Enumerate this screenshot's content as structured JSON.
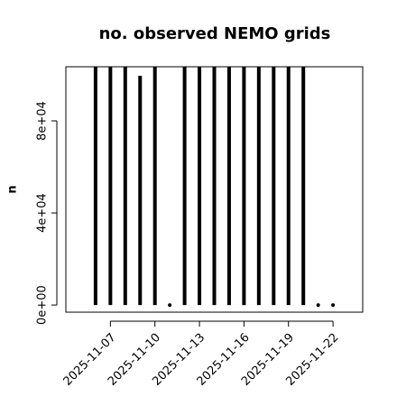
{
  "chart_data": {
    "type": "spike",
    "title": "no. observed NEMO grids",
    "y_label": "n",
    "x": [
      "2025-11-06",
      "2025-11-07",
      "2025-11-08",
      "2025-11-09",
      "2025-11-10",
      "2025-11-11",
      "2025-11-12",
      "2025-11-13",
      "2025-11-14",
      "2025-11-15",
      "2025-11-16",
      "2025-11-17",
      "2025-11-18",
      "2025-11-19",
      "2025-11-20",
      "2025-11-21",
      "2025-11-22"
    ],
    "values": [
      103500,
      103500,
      103500,
      99600,
      103500,
      0,
      103500,
      103500,
      103500,
      103500,
      103500,
      103500,
      103500,
      103500,
      103500,
      0,
      0
    ],
    "color": "#000000",
    "xlim": [
      "2025-11-04",
      "2025-11-24"
    ],
    "xticks": [
      "2025-11-07",
      "2025-11-10",
      "2025-11-13",
      "2025-11-16",
      "2025-11-19",
      "2025-11-22"
    ],
    "ylim": [
      -3100,
      103500
    ],
    "yticks": [
      {
        "value": 0,
        "label": "0e+00"
      },
      {
        "value": 40000,
        "label": "4e+04"
      },
      {
        "value": 80000,
        "label": "8e+04"
      }
    ]
  }
}
